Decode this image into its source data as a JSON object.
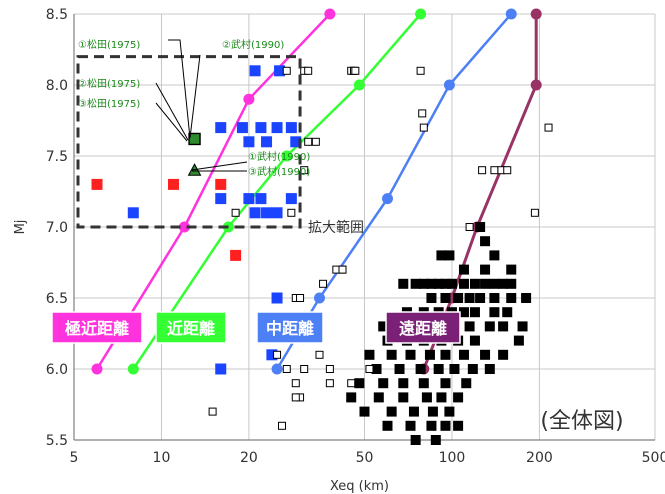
{
  "chart_data": {
    "type": "scatter",
    "xlabel": "Xeq (km)",
    "ylabel": "Mj",
    "xscale": "log",
    "xlim": [
      5,
      500
    ],
    "ylim": [
      5.5,
      8.5
    ],
    "xticks": [
      5,
      10,
      20,
      50,
      100,
      200,
      500
    ],
    "xtick_labels": [
      "5",
      "10",
      "20",
      "50",
      "100",
      "200",
      "500"
    ],
    "yticks": [
      5.5,
      6.0,
      6.5,
      7.0,
      7.5,
      8.0,
      8.5
    ],
    "ytick_labels": [
      "5.5",
      "6.0",
      "6.5",
      "7.0",
      "7.5",
      "8.0",
      "8.5"
    ],
    "grid": true,
    "boundary_lines": [
      {
        "name": "極近距離",
        "color": "#ff33dd",
        "label_bg": "#ff33dd",
        "points": [
          [
            6,
            6.0
          ],
          [
            12,
            7.0
          ],
          [
            20,
            7.9
          ],
          [
            38,
            8.5
          ]
        ]
      },
      {
        "name": "近距離",
        "color": "#33ff33",
        "label_bg": "#33ff33",
        "points": [
          [
            8,
            6.0
          ],
          [
            17,
            7.0
          ],
          [
            27,
            7.5
          ],
          [
            48,
            8.0
          ],
          [
            78,
            8.5
          ]
        ]
      },
      {
        "name": "中距離",
        "color": "#4d7ff5",
        "label_bg": "#4d7ff5",
        "points": [
          [
            25,
            6.0
          ],
          [
            35,
            6.5
          ],
          [
            60,
            7.2
          ],
          [
            98,
            8.0
          ],
          [
            160,
            8.5
          ]
        ]
      },
      {
        "name": "遠距離",
        "color": "#993366",
        "label_bg": "#7a2077",
        "points": [
          [
            80,
            6.0
          ],
          [
            100,
            6.5
          ],
          [
            122,
            7.0
          ],
          [
            195,
            8.0
          ],
          [
            195,
            8.5
          ]
        ]
      }
    ],
    "series": [
      {
        "name": "",
        "color": "#1a44ff",
        "marker": "square-filled",
        "x": [
          21,
          25.5,
          8,
          16,
          21,
          23,
          25,
          19,
          22,
          16,
          25,
          28,
          20,
          23,
          29,
          22,
          20,
          28,
          25,
          16,
          24
        ],
        "y": [
          8.1,
          8.1,
          7.1,
          7.2,
          7.1,
          7.1,
          7.1,
          7.7,
          7.7,
          7.7,
          7.7,
          7.7,
          7.6,
          7.6,
          7.6,
          7.2,
          7.2,
          7.2,
          6.5,
          6.0,
          6.1
        ]
      },
      {
        "name": "",
        "color": "#ff2020",
        "marker": "square-filled",
        "x": [
          6,
          11,
          16,
          18
        ],
        "y": [
          7.3,
          7.3,
          7.3,
          6.8
        ]
      },
      {
        "name": "",
        "color": "#000000",
        "marker": "square-filled",
        "x": [
          68,
          75,
          80,
          85,
          90,
          95,
          100,
          110,
          120,
          130,
          140,
          150,
          160,
          110,
          130,
          160,
          85,
          95,
          105,
          115,
          125,
          140,
          160,
          180,
          70,
          80,
          90,
          100,
          110,
          120,
          140,
          155,
          58,
          65,
          75,
          88,
          100,
          115,
          135,
          150,
          175,
          60,
          70,
          80,
          92,
          105,
          120,
          170,
          52,
          62,
          72,
          84,
          95,
          110,
          130,
          150,
          55,
          66,
          78,
          90,
          102,
          118,
          135,
          48,
          58,
          68,
          80,
          95,
          112,
          45,
          56,
          68,
          82,
          92,
          105,
          50,
          62,
          74,
          86,
          98,
          60,
          72,
          85,
          95,
          105,
          75,
          88,
          92,
          98,
          125,
          130,
          140
        ],
        "y": [
          6.6,
          6.6,
          6.6,
          6.6,
          6.6,
          6.6,
          6.6,
          6.6,
          6.6,
          6.6,
          6.6,
          6.6,
          6.6,
          6.7,
          6.7,
          6.7,
          6.5,
          6.5,
          6.5,
          6.5,
          6.5,
          6.5,
          6.5,
          6.5,
          6.4,
          6.4,
          6.4,
          6.4,
          6.4,
          6.4,
          6.4,
          6.4,
          6.3,
          6.3,
          6.3,
          6.3,
          6.3,
          6.3,
          6.3,
          6.3,
          6.3,
          6.2,
          6.2,
          6.2,
          6.2,
          6.2,
          6.2,
          6.2,
          6.1,
          6.1,
          6.1,
          6.1,
          6.1,
          6.1,
          6.1,
          6.1,
          6.0,
          6.0,
          6.0,
          6.0,
          6.0,
          6.0,
          6.0,
          5.9,
          5.9,
          5.9,
          5.9,
          5.9,
          5.9,
          5.8,
          5.8,
          5.8,
          5.8,
          5.8,
          5.8,
          5.7,
          5.7,
          5.7,
          5.7,
          5.7,
          5.6,
          5.6,
          5.6,
          5.6,
          5.6,
          5.5,
          5.5,
          6.8,
          6.8,
          7.0,
          6.9,
          6.8
        ]
      },
      {
        "name": "",
        "color": "#000000",
        "marker": "square-open",
        "x": [
          27,
          31,
          32,
          45,
          46,
          46.5,
          78,
          79,
          80,
          127,
          140,
          148,
          155,
          193,
          215,
          34,
          115,
          28,
          36,
          40,
          42,
          42,
          29,
          30,
          31,
          25,
          35,
          27,
          29,
          30,
          38,
          45,
          52,
          26,
          38,
          15,
          29,
          30,
          31,
          31,
          32,
          18
        ],
        "y": [
          8.1,
          8.1,
          8.1,
          8.1,
          8.1,
          8.1,
          8.1,
          7.8,
          7.7,
          7.4,
          7.4,
          7.4,
          7.4,
          7.1,
          7.7,
          7.6,
          7.0,
          7.1,
          6.6,
          6.7,
          6.7,
          6.7,
          6.5,
          6.5,
          6.3,
          6.1,
          6.1,
          6.0,
          5.9,
          5.8,
          5.9,
          5.9,
          6.0,
          5.6,
          6.0,
          5.7,
          5.8,
          6.3,
          6.0,
          7.4,
          7.6,
          7.1
        ]
      },
      {
        "name": "",
        "color": "#2d8a2d",
        "marker": "square-open-green",
        "x": [
          13
        ],
        "y": [
          7.62
        ]
      },
      {
        "name": "",
        "color": "#2d8a2d",
        "marker": "triangle",
        "x": [
          13
        ],
        "y": [
          7.4
        ]
      }
    ],
    "annotations": [
      {
        "text": "①松田(1975)",
        "color": "#1a8a1a",
        "target": [
          13,
          7.62
        ]
      },
      {
        "text": "②武村(1990)",
        "color": "#1a8a1a",
        "target": [
          13,
          7.62
        ]
      },
      {
        "text": "②松田(1975)",
        "color": "#1a8a1a",
        "target": [
          13,
          7.62
        ]
      },
      {
        "text": "③松田(1975)",
        "color": "#1a8a1a",
        "target": [
          13,
          7.62
        ]
      },
      {
        "text": "①武村(1990)",
        "color": "#1a8a1a",
        "target": [
          13,
          7.4
        ]
      },
      {
        "text": "③武村(1990)",
        "color": "#1a8a1a",
        "target": [
          13,
          7.4
        ]
      }
    ],
    "zoom_box": {
      "x_range": [
        6,
        30
      ],
      "y_range": [
        7.0,
        8.2
      ],
      "label": "拡大範囲"
    },
    "corner_label": "(全体図)"
  }
}
